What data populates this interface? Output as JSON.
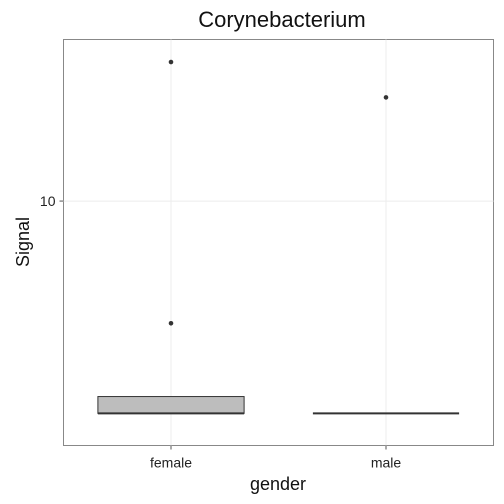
{
  "chart_data": {
    "type": "boxplot",
    "title": "Corynebacterium",
    "xlabel": "gender",
    "ylabel": "Signal",
    "categories": [
      "female",
      "male"
    ],
    "y_scale": "log10",
    "ylim": [
      2.5,
      25
    ],
    "y_ticks": [
      10
    ],
    "grid": true,
    "boxes": [
      {
        "category": "female",
        "q1": 3.0,
        "median": 3.0,
        "q3": 3.3,
        "whisker_low": 3.0,
        "whisker_high": 3.3,
        "outliers": [
          5.0,
          22.0
        ]
      },
      {
        "category": "male",
        "q1": 3.0,
        "median": 3.0,
        "q3": 3.0,
        "whisker_low": 3.0,
        "whisker_high": 3.0,
        "outliers": [
          18.0
        ]
      }
    ],
    "colors": {
      "box_fill": "#bdbdbd",
      "box_stroke": "#333333",
      "point": "#333333",
      "grid": "#ececec",
      "panel_border": "#888888"
    }
  }
}
